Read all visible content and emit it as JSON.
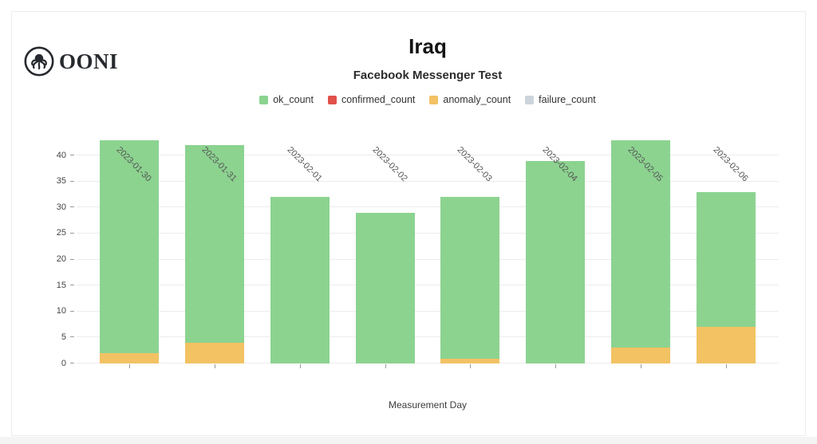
{
  "brand": {
    "wordmark": "OONI"
  },
  "chart_data": {
    "type": "bar",
    "stacked": true,
    "title": "Iraq",
    "subtitle": "Facebook Messenger Test",
    "xlabel": "Measurement Day",
    "categories": [
      "2023-01-30",
      "2023-01-31",
      "2023-02-01",
      "2023-02-02",
      "2023-02-03",
      "2023-02-04",
      "2023-02-05",
      "2023-02-06"
    ],
    "series": [
      {
        "name": "ok_count",
        "color": "#8CD390",
        "values": [
          41,
          38,
          32,
          29,
          31,
          39,
          40,
          26
        ]
      },
      {
        "name": "confirmed_count",
        "color": "#E0524A",
        "values": [
          0,
          0,
          0,
          0,
          0,
          0,
          0,
          0
        ]
      },
      {
        "name": "anomaly_count",
        "color": "#F2C263",
        "values": [
          2,
          4,
          0,
          0,
          1,
          0,
          3,
          7
        ]
      },
      {
        "name": "failure_count",
        "color": "#CDD4DB",
        "values": [
          0,
          0,
          0,
          0,
          0,
          0,
          0,
          0
        ]
      }
    ],
    "totals": [
      43,
      42,
      32,
      29,
      32,
      39,
      43,
      33
    ],
    "stack_order_bottom_to_top": [
      "anomaly_count",
      "confirmed_count",
      "failure_count",
      "ok_count"
    ],
    "legend_order": [
      "ok_count",
      "confirmed_count",
      "anomaly_count",
      "failure_count"
    ],
    "legend_position": "top",
    "yticks": [
      0,
      5,
      10,
      15,
      20,
      25,
      30,
      35,
      40
    ],
    "ylim": [
      0,
      44
    ],
    "grid": true
  }
}
